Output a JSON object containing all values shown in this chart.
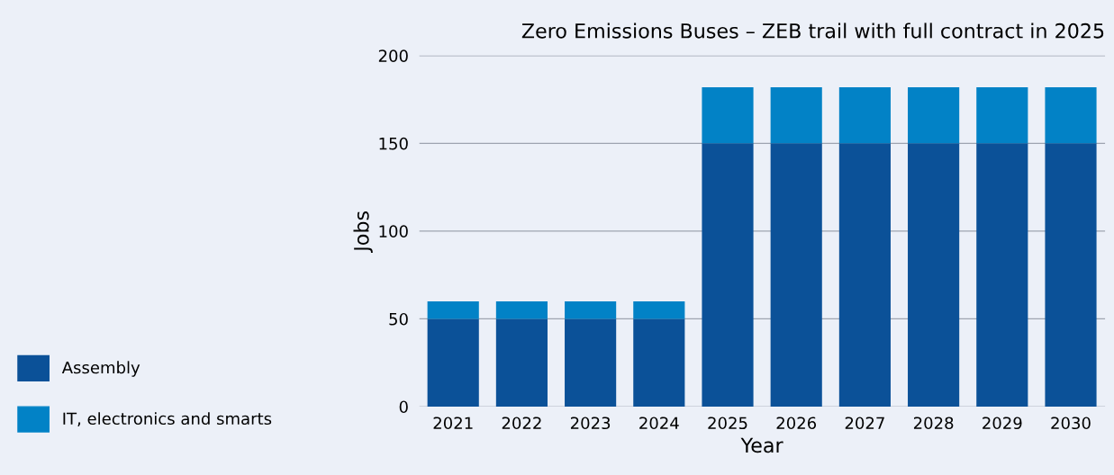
{
  "chart_data": {
    "type": "bar",
    "title": "Zero Emissions Buses – ZEB trail with full contract in 2025",
    "xlabel": "Year",
    "ylabel": "Jobs",
    "categories": [
      "2021",
      "2022",
      "2023",
      "2024",
      "2025",
      "2026",
      "2027",
      "2028",
      "2029",
      "2030"
    ],
    "stacked": true,
    "series": [
      {
        "name": "Assembly",
        "color": "#0b5198",
        "values": [
          50,
          50,
          50,
          50,
          150,
          150,
          150,
          150,
          150,
          150
        ]
      },
      {
        "name": "IT, electronics and smarts",
        "color": "#0282c6",
        "values": [
          10,
          10,
          10,
          10,
          32,
          32,
          32,
          32,
          32,
          32
        ]
      }
    ],
    "ylim": [
      0,
      200
    ],
    "yticks": [
      0,
      50,
      100,
      150,
      200
    ],
    "grid": "y",
    "legend": "bottom left"
  }
}
